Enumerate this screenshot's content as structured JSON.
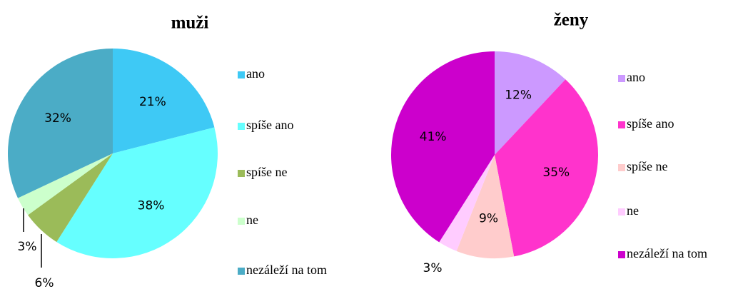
{
  "chart_data": [
    {
      "type": "pie",
      "title": "muži",
      "categories": [
        "ano",
        "spíše ano",
        "spíše ne",
        "ne",
        "nezáleží na tom"
      ],
      "values": [
        21,
        38,
        6,
        3,
        32
      ],
      "value_labels": [
        "21%",
        "38%",
        "6%",
        "3%",
        "32%"
      ],
      "colors": [
        "#3ec9f5",
        "#66ffff",
        "#9bbb59",
        "#ccffcc",
        "#4bacc6"
      ],
      "legend": "right"
    },
    {
      "type": "pie",
      "title": "ženy",
      "categories": [
        "ano",
        "spíše ano",
        "spíše ne",
        "ne",
        "nezáleží na tom"
      ],
      "values": [
        12,
        35,
        9,
        3,
        41
      ],
      "value_labels": [
        "12%",
        "35%",
        "9%",
        "3%",
        "41%"
      ],
      "colors": [
        "#cc99ff",
        "#ff33cc",
        "#ffcccc",
        "#ffccff",
        "#cc00cc"
      ],
      "legend": "right"
    }
  ]
}
